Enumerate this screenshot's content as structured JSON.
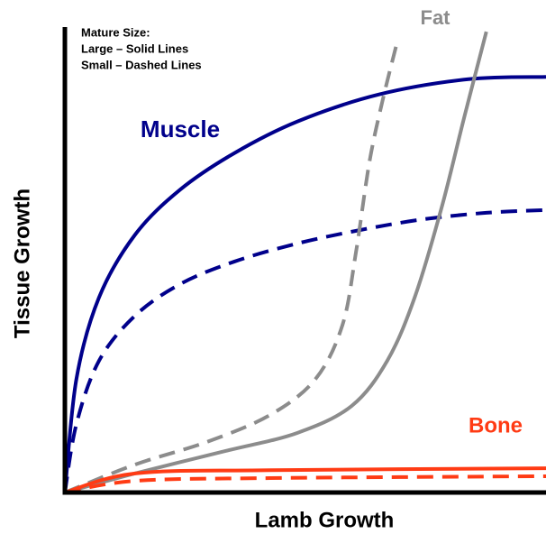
{
  "chart_data": {
    "type": "line",
    "x_label": "Lamb Growth",
    "y_label": "Tissue Growth",
    "note": [
      "Mature Size:",
      "Large – Solid Lines",
      "Small – Dashed Lines"
    ],
    "xlim": [
      0,
      100
    ],
    "ylim": [
      0,
      100
    ],
    "series": [
      {
        "name": "Muscle",
        "color": "#00008b",
        "large": {
          "x": [
            0,
            2.4,
            7.1,
            14.6,
            24,
            35.2,
            48.3,
            65.2,
            83.9,
            100
          ],
          "values": [
            0,
            24.4,
            41.9,
            55.4,
            65.1,
            72.9,
            79.7,
            85.5,
            88.8,
            89.3
          ]
        },
        "small": {
          "x": [
            0,
            2.4,
            7.1,
            14.6,
            24,
            35.2,
            48.3,
            61.4,
            74.5,
            87.6,
            100
          ],
          "values": [
            0,
            14.7,
            28.3,
            38,
            44.8,
            49.6,
            53.5,
            56.4,
            58.7,
            60.1,
            60.7
          ]
        }
      },
      {
        "name": "Fat",
        "color": "#8c8c8c",
        "large": {
          "x": [
            0,
            14.6,
            33.3,
            48.3,
            59.6,
            67,
            72.7,
            78.3,
            83,
            87.6
          ],
          "values": [
            0,
            4.1,
            8.9,
            12.8,
            18.6,
            28.3,
            41.9,
            61.2,
            80.6,
            99
          ]
        },
        "small": {
          "x": [
            0,
            14.6,
            29.6,
            42.7,
            52.1,
            57.7,
            60.5,
            63.3,
            66.1,
            68.9
          ],
          "values": [
            0,
            6,
            10.9,
            16.7,
            24.4,
            36,
            51.6,
            71,
            84.5,
            96.1
          ]
        }
      },
      {
        "name": "Bone",
        "color": "#ff3b14",
        "large": {
          "x": [
            0,
            14.6,
            42.7,
            100
          ],
          "values": [
            0,
            4.1,
            4.8,
            5.2
          ]
        },
        "small": {
          "x": [
            0,
            14.6,
            42.7,
            100
          ],
          "values": [
            0,
            2.5,
            3.1,
            3.5
          ]
        }
      }
    ]
  }
}
